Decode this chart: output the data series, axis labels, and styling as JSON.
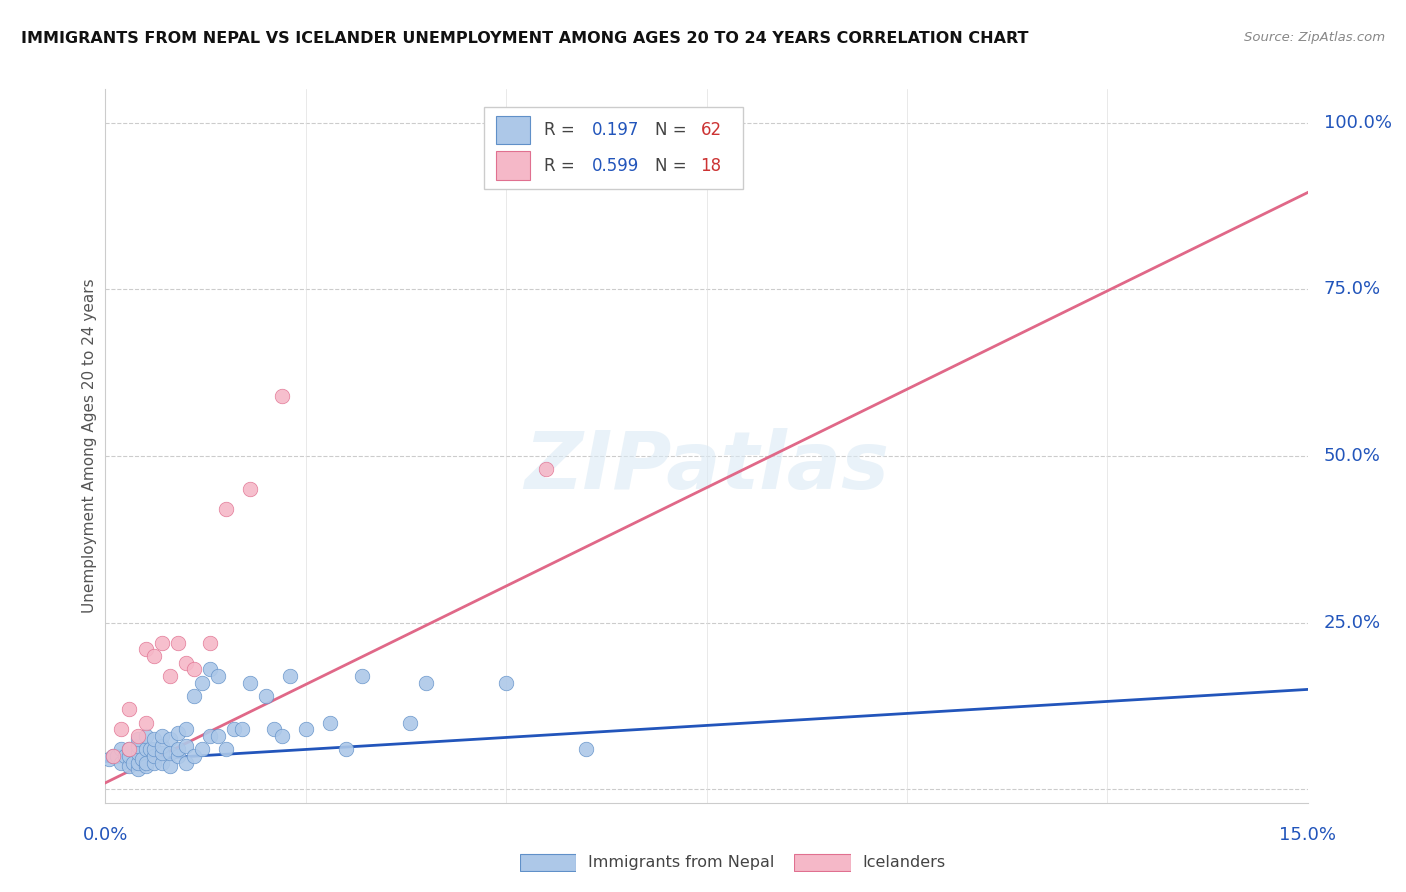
{
  "title": "IMMIGRANTS FROM NEPAL VS ICELANDER UNEMPLOYMENT AMONG AGES 20 TO 24 YEARS CORRELATION CHART",
  "source": "Source: ZipAtlas.com",
  "ylabel": "Unemployment Among Ages 20 to 24 years",
  "xlim": [
    0.0,
    0.15
  ],
  "ylim": [
    -0.02,
    1.05
  ],
  "plot_ylim": [
    0.0,
    1.05
  ],
  "xtick_positions": [
    0.0,
    0.025,
    0.05,
    0.075,
    0.1,
    0.125,
    0.15
  ],
  "xticklabels_show": {
    "0.0": "0.0%",
    "0.15": "15.0%"
  },
  "ytick_positions": [
    0.0,
    0.25,
    0.5,
    0.75,
    1.0
  ],
  "yticklabels_right": [
    "",
    "25.0%",
    "50.0%",
    "75.0%",
    "100.0%"
  ],
  "watermark": "ZIPatlas",
  "nepal_color": "#adc8e8",
  "nepal_edge_color": "#6090c8",
  "nepal_line_color": "#2255bb",
  "iceland_color": "#f5b8c8",
  "iceland_edge_color": "#e07090",
  "iceland_line_color": "#e06888",
  "nepal_reg_intercept": 0.042,
  "nepal_reg_slope": 0.72,
  "iceland_reg_intercept": 0.01,
  "iceland_reg_slope": 5.9,
  "nepal_points_x": [
    0.0005,
    0.001,
    0.0015,
    0.002,
    0.002,
    0.0025,
    0.003,
    0.003,
    0.003,
    0.0035,
    0.004,
    0.004,
    0.004,
    0.004,
    0.004,
    0.0045,
    0.005,
    0.005,
    0.005,
    0.005,
    0.0055,
    0.006,
    0.006,
    0.006,
    0.006,
    0.007,
    0.007,
    0.007,
    0.007,
    0.008,
    0.008,
    0.008,
    0.009,
    0.009,
    0.009,
    0.01,
    0.01,
    0.01,
    0.011,
    0.011,
    0.012,
    0.012,
    0.013,
    0.013,
    0.014,
    0.014,
    0.015,
    0.016,
    0.017,
    0.018,
    0.02,
    0.021,
    0.022,
    0.023,
    0.025,
    0.028,
    0.03,
    0.032,
    0.038,
    0.04,
    0.05,
    0.06
  ],
  "nepal_points_y": [
    0.045,
    0.05,
    0.05,
    0.04,
    0.06,
    0.05,
    0.035,
    0.05,
    0.06,
    0.04,
    0.03,
    0.04,
    0.055,
    0.065,
    0.075,
    0.045,
    0.035,
    0.04,
    0.06,
    0.08,
    0.06,
    0.04,
    0.05,
    0.06,
    0.075,
    0.04,
    0.055,
    0.065,
    0.08,
    0.035,
    0.055,
    0.075,
    0.05,
    0.06,
    0.085,
    0.04,
    0.065,
    0.09,
    0.05,
    0.14,
    0.06,
    0.16,
    0.08,
    0.18,
    0.08,
    0.17,
    0.06,
    0.09,
    0.09,
    0.16,
    0.14,
    0.09,
    0.08,
    0.17,
    0.09,
    0.1,
    0.06,
    0.17,
    0.1,
    0.16,
    0.16,
    0.06
  ],
  "iceland_points_x": [
    0.001,
    0.002,
    0.003,
    0.003,
    0.004,
    0.005,
    0.005,
    0.006,
    0.007,
    0.008,
    0.009,
    0.01,
    0.011,
    0.013,
    0.015,
    0.018,
    0.022,
    0.055
  ],
  "iceland_points_y": [
    0.05,
    0.09,
    0.06,
    0.12,
    0.08,
    0.1,
    0.21,
    0.2,
    0.22,
    0.17,
    0.22,
    0.19,
    0.18,
    0.22,
    0.42,
    0.45,
    0.59,
    0.48
  ]
}
